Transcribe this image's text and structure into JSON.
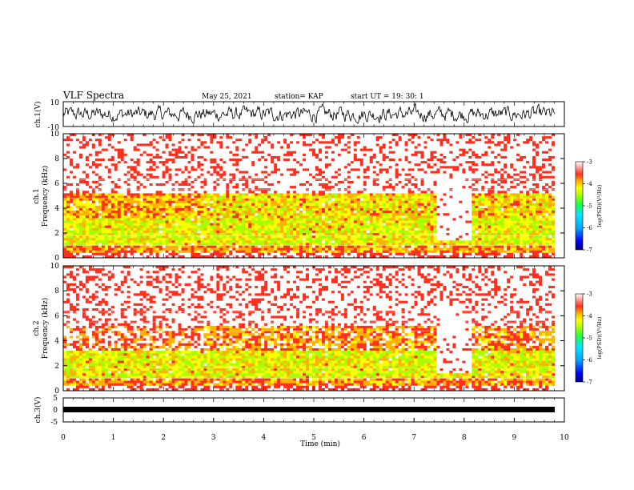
{
  "header": {
    "title": "VLF Spectra",
    "date": "May 25, 2021",
    "station": "station= KAP",
    "start": "start  UT =   19: 30: 1"
  },
  "chart_data": [
    {
      "type": "line",
      "name": "ch1-waveform",
      "ylabel": "ch.1(V)",
      "ylim": [
        -10,
        10
      ],
      "y_ticks": [
        "10",
        "-10"
      ],
      "xlim": [
        0,
        10
      ]
    },
    {
      "type": "heatmap",
      "name": "ch1-spectrogram",
      "ylabel": "ch.1\nFrequency (kHz)",
      "ylabel_lines": [
        "ch.1",
        "Frequency (kHz)"
      ],
      "ylim": [
        0,
        10
      ],
      "y_ticks": [
        "0",
        "2",
        "4",
        "6",
        "8",
        "10"
      ],
      "xlim": [
        0,
        10
      ],
      "colorbar": {
        "label": "log(PSD)(V²/Hz)",
        "range": [
          -7,
          -3
        ],
        "ticks": [
          "-3",
          "-4",
          "-5",
          "-6",
          "-7"
        ]
      }
    },
    {
      "type": "heatmap",
      "name": "ch2-spectrogram",
      "ylabel": "ch.2\nFrequency (kHz)",
      "ylabel_lines": [
        "ch.2",
        "Frequency (kHz)"
      ],
      "ylim": [
        0,
        10
      ],
      "y_ticks": [
        "0",
        "2",
        "4",
        "6",
        "8",
        "10"
      ],
      "xlim": [
        0,
        10
      ],
      "colorbar": {
        "label": "log(PSD)(V²/Hz)",
        "range": [
          -7,
          -3
        ],
        "ticks": [
          "-3",
          "-4",
          "-5",
          "-6",
          "-7"
        ]
      }
    },
    {
      "type": "line",
      "name": "ch3-waveform",
      "ylabel": "ch.3(V)",
      "ylim": [
        -5,
        5
      ],
      "y_ticks": [
        "5",
        "0",
        "-5"
      ],
      "xlim": [
        0,
        10
      ],
      "xlabel": "Time (min)",
      "x_ticks": [
        "0",
        "1",
        "2",
        "3",
        "4",
        "5",
        "6",
        "7",
        "8",
        "9",
        "10"
      ]
    }
  ],
  "colors": {
    "colormap": [
      "#000080",
      "#0000ff",
      "#00aaff",
      "#00e5ff",
      "#20ff40",
      "#a8ff00",
      "#ffff00",
      "#ffb000",
      "#ff3020",
      "#ffffff"
    ],
    "line": "#000000"
  }
}
